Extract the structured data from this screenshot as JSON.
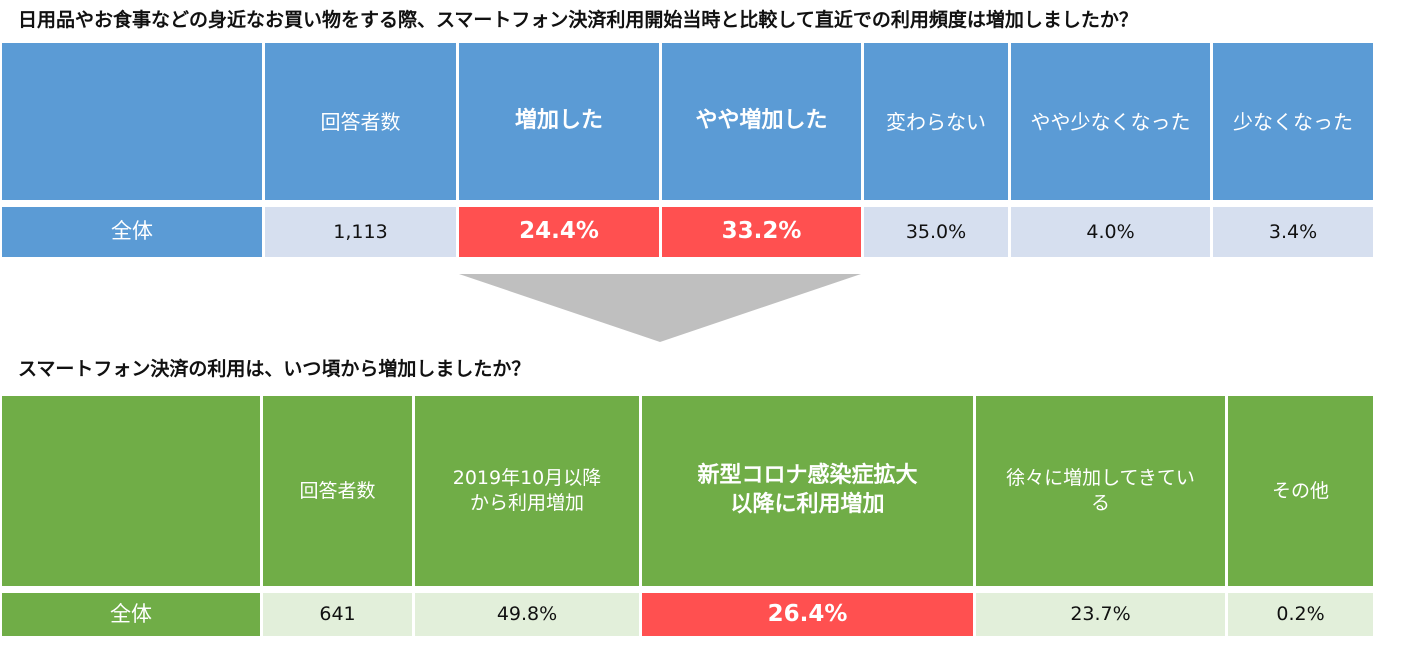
{
  "survey1": {
    "question": "日用品やお食事などの身近なお買い物をする際、スマートフォン決済利用開始当時と比較して直近での利用頻度は増加しましたか？",
    "headers": {
      "respondents": "回答者数",
      "increased": "増加した",
      "somewhat_increased": "やや増加した",
      "unchanged": "変わらない",
      "somewhat_decreased": "やや少なくなった",
      "decreased": "少なくなった"
    },
    "row": {
      "label": "全体",
      "respondents": "1,113",
      "increased": "24.4%",
      "somewhat_increased": "33.2%",
      "unchanged": "35.0%",
      "somewhat_decreased": "4.0%",
      "decreased": "3.4%"
    }
  },
  "survey2": {
    "question": "スマートフォン決済の利用は、いつ頃から増加しましたか？",
    "headers": {
      "respondents": "回答者数",
      "since_oct_2019_line1": "2019年10月以降",
      "since_oct_2019_line2": "から利用増加",
      "since_covid_line1": "新型コロナ感染症拡大",
      "since_covid_line2": "以降に利用増加",
      "gradually_line1": "徐々に増加してきてい",
      "gradually_line2": "る",
      "other": "その他"
    },
    "row": {
      "label": "全体",
      "respondents": "641",
      "since_oct_2019": "49.8%",
      "since_covid": "26.4%",
      "gradually": "23.7%",
      "other": "0.2%"
    }
  },
  "colors": {
    "blue_header": "#5b9bd5",
    "blue_value_bg": "#d6dfef",
    "green_header": "#70ad47",
    "green_value_bg": "#e2efda",
    "highlight_red": "#ff5050",
    "arrow_gray": "#bfbfbf"
  },
  "icons": {
    "transition_arrow": "down-triangle-arrow"
  }
}
